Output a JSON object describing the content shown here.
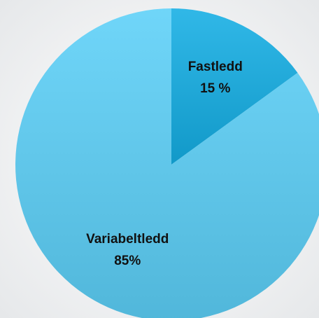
{
  "chart_data": {
    "type": "pie",
    "categories": [
      "Fastledd",
      "Variabeltledd"
    ],
    "values": [
      15,
      85
    ],
    "value_labels": [
      "15 %",
      "85%"
    ],
    "colors": [
      "#14aee4",
      "#5cd0f8"
    ]
  }
}
